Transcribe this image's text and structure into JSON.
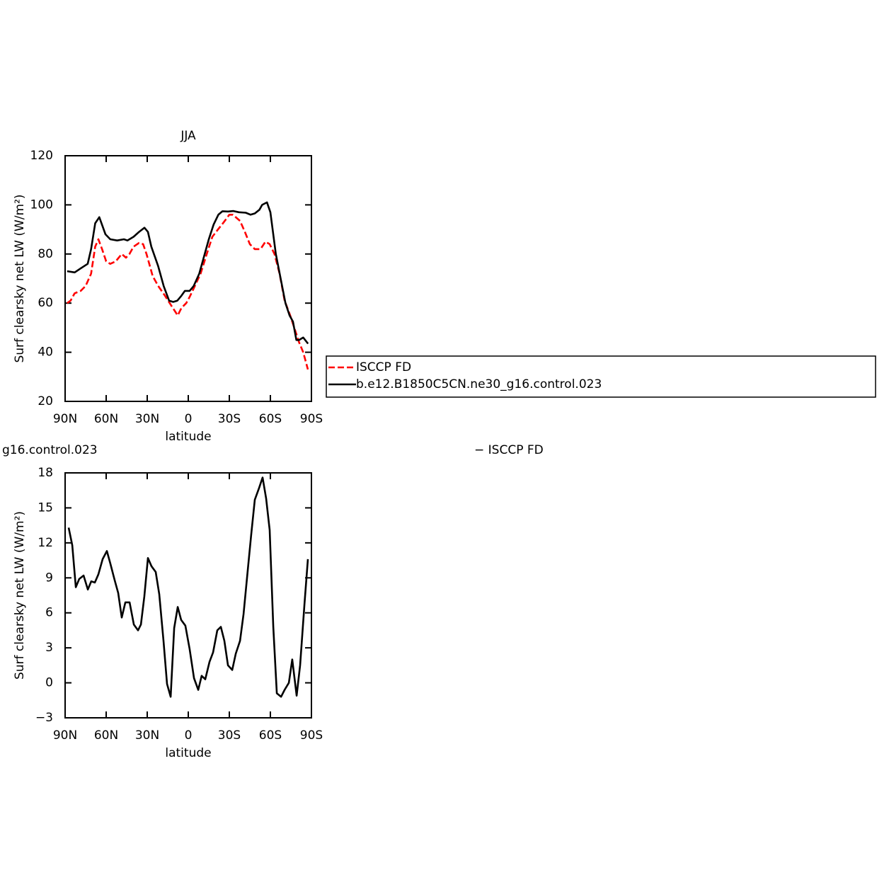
{
  "chart_data": [
    {
      "type": "line",
      "title": "JJA",
      "x_label": "latitude",
      "y_label": "Surf clearsky net LW (W/m²)",
      "xlim": [
        90,
        -90
      ],
      "xticks": [
        {
          "value": 90,
          "label": "90N"
        },
        {
          "value": 60,
          "label": "60N"
        },
        {
          "value": 30,
          "label": "30N"
        },
        0,
        {
          "value": -30,
          "label": "30S"
        },
        {
          "value": -60,
          "label": "60S"
        },
        {
          "value": -90,
          "label": "90S"
        }
      ],
      "ylim": [
        20,
        120
      ],
      "yticks": [
        20,
        40,
        60,
        80,
        100,
        120
      ],
      "legend": "right",
      "series": [
        {
          "name": "ISCCP FD",
          "color": "#ff0000",
          "dash": true,
          "x": [
            88.5,
            86,
            83,
            78.6,
            75,
            71,
            68,
            65.7,
            63,
            60,
            57,
            53,
            48.6,
            45.5,
            43,
            40,
            36,
            33,
            30.5,
            26,
            22,
            17,
            12.4,
            7.7,
            5,
            1.5,
            -1,
            -4,
            -9,
            -13.5,
            -17.6,
            -21.7,
            -26,
            -30,
            -32.6,
            -37.8,
            -41.4,
            -45,
            -48.6,
            -52.8,
            -56.4,
            -59.5,
            -63,
            -66.7,
            -70.4,
            -74.5,
            -78.6,
            -81,
            -84,
            -87.4
          ],
          "values": [
            60,
            61,
            64,
            65,
            67,
            72,
            83,
            86,
            82,
            77,
            76,
            77,
            80,
            78.5,
            80,
            83,
            84.5,
            84,
            80,
            71,
            67,
            63,
            59,
            55,
            58,
            60,
            62.5,
            66,
            72,
            80,
            87,
            90,
            93,
            96,
            96,
            93.5,
            89,
            84,
            82,
            82,
            85,
            84,
            80,
            72,
            61,
            55,
            48,
            44,
            40,
            33
          ]
        },
        {
          "name": "b.e12.B1850C5CN.ne30_g16.control.023",
          "color": "#000000",
          "dash": false,
          "x": [
            88.5,
            83,
            79,
            73.5,
            71,
            68,
            65,
            60.5,
            57,
            52,
            47,
            44.5,
            40,
            36,
            32,
            29.5,
            27,
            22,
            18,
            14,
            11,
            8,
            5,
            2.5,
            -1,
            -4,
            -8,
            -11,
            -15,
            -18.5,
            -22,
            -25,
            -29,
            -33,
            -37,
            -42,
            -45.5,
            -48.6,
            -52,
            -54,
            -57.5,
            -60,
            -64,
            -71,
            -74,
            -76.5,
            -79,
            -81,
            -84,
            -87.5
          ],
          "values": [
            73,
            72.5,
            74,
            76,
            82,
            92.5,
            95,
            88,
            86,
            85.5,
            86,
            85.5,
            87,
            89,
            90.7,
            89,
            83,
            75,
            67,
            61,
            60.5,
            61,
            63,
            65,
            65,
            67,
            72,
            78,
            86,
            92,
            96,
            97.4,
            97.3,
            97.5,
            97,
            96.8,
            96,
            96.5,
            98,
            100,
            101,
            97,
            80,
            60,
            55,
            52.5,
            45,
            45,
            46,
            43.5
          ]
        }
      ]
    },
    {
      "type": "line",
      "title_left": "g16.control.023",
      "title_right": "− ISCCP FD",
      "x_label": "latitude",
      "y_label": "Surf clearsky net LW (W/m²)",
      "xlim": [
        90,
        -90
      ],
      "xticks": [
        {
          "value": 90,
          "label": "90N"
        },
        {
          "value": 60,
          "label": "60N"
        },
        {
          "value": 30,
          "label": "30N"
        },
        0,
        {
          "value": -30,
          "label": "30S"
        },
        {
          "value": -60,
          "label": "60S"
        },
        {
          "value": -90,
          "label": "90S"
        }
      ],
      "ylim": [
        -3,
        18
      ],
      "yticks": [
        {
          "value": -3,
          "label": "−3"
        },
        0,
        3,
        6,
        9,
        12,
        15,
        18
      ],
      "series": [
        {
          "color": "#000000",
          "x": [
            87.4,
            84.8,
            82.2,
            79.7,
            76.5,
            73.4,
            70.9,
            68.3,
            65.7,
            62.6,
            59.5,
            56.9,
            53.8,
            51.2,
            48.6,
            46,
            42.9,
            39.8,
            36.7,
            34.6,
            32.1,
            29.5,
            26.9,
            23.8,
            21.2,
            18.1,
            15.5,
            12.9,
            10.3,
            7.7,
            5.2,
            2.1,
            -1,
            -4.2,
            -7.3,
            -9.8,
            -12.4,
            -15.5,
            -18.1,
            -21.2,
            -23.8,
            -26.4,
            -29,
            -32.1,
            -34.7,
            -37.8,
            -40.4,
            -43.5,
            -46,
            -48.6,
            -51.7,
            -54.3,
            -56.9,
            -59.5,
            -62.1,
            -64.7,
            -67.8,
            -70.4,
            -73.5,
            -76,
            -79.2,
            -81.7,
            -84.9,
            -87.4
          ],
          "values": [
            13.3,
            11.8,
            8.2,
            8.9,
            9.2,
            8.0,
            8.7,
            8.6,
            9.3,
            10.6,
            11.3,
            10.2,
            8.8,
            7.7,
            5.6,
            6.9,
            6.9,
            5.0,
            4.5,
            5.0,
            7.4,
            10.7,
            10.0,
            9.5,
            7.6,
            3.6,
            -0.1,
            -1.2,
            4.7,
            6.5,
            5.4,
            4.9,
            2.9,
            0.4,
            -0.6,
            0.6,
            0.3,
            1.8,
            2.6,
            4.5,
            4.8,
            3.6,
            1.5,
            1.1,
            2.5,
            3.6,
            5.9,
            9.7,
            12.7,
            15.7,
            16.7,
            17.6,
            15.8,
            13.1,
            4.8,
            -0.9,
            -1.2,
            -0.6,
            0,
            2.0,
            -1.1,
            1.5,
            6.7,
            10.6
          ]
        }
      ]
    }
  ]
}
